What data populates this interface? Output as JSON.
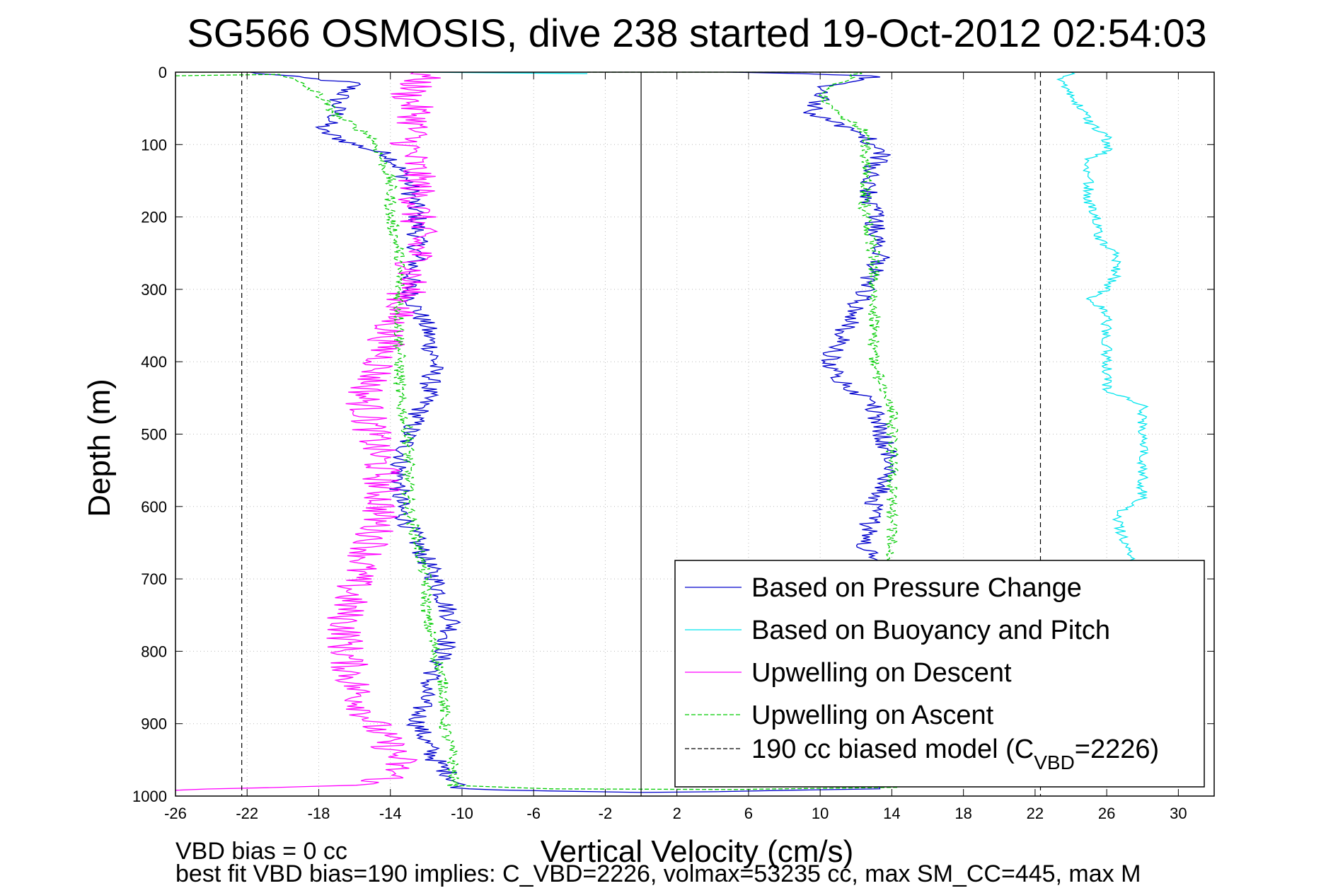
{
  "chart_data": {
    "type": "line",
    "title": "SG566 OSMOSIS, dive 238 started 19-Oct-2012 02:54:03",
    "xlabel": "Vertical Velocity (cm/s)",
    "ylabel": "Depth (m)",
    "xlim": [
      -26,
      32
    ],
    "ylim": [
      1000,
      0
    ],
    "y_reversed": true,
    "grid": true,
    "legend_position": "bottom-right",
    "xticks": [
      -26,
      -22,
      -18,
      -14,
      -10,
      -6,
      -2,
      2,
      6,
      10,
      14,
      18,
      22,
      26,
      30
    ],
    "yticks": [
      0,
      100,
      200,
      300,
      400,
      500,
      600,
      700,
      800,
      900,
      1000
    ],
    "zero_line_x": 0,
    "model_lines_x": [
      -22.3,
      22.3
    ],
    "notes": [
      "VBD bias = 0 cc",
      "best fit VBD bias=190 implies: C_VBD=2226, volmax=53235 cc, max SM_CC=445, max M"
    ],
    "legend": [
      {
        "label": "Based on Pressure Change",
        "series": "pressure",
        "color": "#0000cc",
        "style": "solid"
      },
      {
        "label": "Based on Buoyancy and Pitch",
        "series": "buoyancy",
        "color": "#00e5ee",
        "style": "solid"
      },
      {
        "label": "Upwelling on Descent",
        "series": "upDescent",
        "color": "#ff00ff",
        "style": "solid"
      },
      {
        "label": "Upwelling on Ascent",
        "series": "upAscent",
        "color": "#00cc00",
        "style": "dashed"
      },
      {
        "label": "190 cc biased model (C",
        "sub": "VBD",
        "tail": "=2226)",
        "series": "model",
        "color": "#000000",
        "style": "dashed"
      }
    ],
    "series": [
      {
        "id": "pressure_descent",
        "name": "Based on Pressure Change",
        "color": "#0000cc",
        "noise": 0.6,
        "points": [
          [
            -22,
            0
          ],
          [
            -16,
            15
          ],
          [
            -17,
            40
          ],
          [
            -17,
            60
          ],
          [
            -18,
            80
          ],
          [
            -16,
            100
          ],
          [
            -14,
            115
          ],
          [
            -13,
            150
          ],
          [
            -12.5,
            200
          ],
          [
            -12.5,
            250
          ],
          [
            -13,
            300
          ],
          [
            -12.5,
            330
          ],
          [
            -12,
            350
          ],
          [
            -11.5,
            400
          ],
          [
            -12,
            450
          ],
          [
            -13,
            500
          ],
          [
            -13.5,
            550
          ],
          [
            -13.5,
            600
          ],
          [
            -12.5,
            650
          ],
          [
            -11.5,
            700
          ],
          [
            -10.5,
            760
          ],
          [
            -11,
            800
          ],
          [
            -12,
            850
          ],
          [
            -12.5,
            900
          ],
          [
            -11.5,
            950
          ],
          [
            -10.5,
            975
          ],
          [
            -10,
            990
          ],
          [
            -5,
            993
          ],
          [
            0,
            995
          ]
        ]
      },
      {
        "id": "pressure_ascent",
        "name": "Based on Pressure Change",
        "color": "#0000cc",
        "noise": 0.6,
        "points": [
          [
            0,
            995
          ],
          [
            4,
            994
          ],
          [
            13.5,
            990
          ],
          [
            13.5,
            950
          ],
          [
            13.5,
            900
          ],
          [
            13,
            850
          ],
          [
            13,
            800
          ],
          [
            13,
            750
          ],
          [
            13,
            700
          ],
          [
            12.5,
            650
          ],
          [
            13,
            600
          ],
          [
            14,
            550
          ],
          [
            13.5,
            500
          ],
          [
            13,
            460
          ],
          [
            11,
            420
          ],
          [
            10.5,
            400
          ],
          [
            11.5,
            350
          ],
          [
            12.5,
            300
          ],
          [
            13.5,
            250
          ],
          [
            13,
            200
          ],
          [
            12.5,
            150
          ],
          [
            13.5,
            110
          ],
          [
            12.5,
            90
          ],
          [
            11,
            70
          ],
          [
            9.5,
            60
          ],
          [
            10,
            40
          ],
          [
            10,
            20
          ],
          [
            12.5,
            10
          ],
          [
            13,
            5
          ],
          [
            9,
            2
          ],
          [
            5,
            0
          ]
        ]
      },
      {
        "id": "buoyancy_descent",
        "name": "Based on Buoyancy and Pitch",
        "color": "#00e5ee",
        "noise": 0.8,
        "points": [
          [
            -12,
            0
          ],
          [
            -8,
            1
          ],
          [
            -3,
            2
          ]
        ]
      },
      {
        "id": "buoyancy_ascent",
        "name": "Based on Buoyancy and Pitch",
        "color": "#00e5ee",
        "noise": 0.3,
        "points": [
          [
            27.5,
            680
          ],
          [
            27,
            650
          ],
          [
            26.5,
            610
          ],
          [
            28,
            590
          ],
          [
            28,
            550
          ],
          [
            28,
            500
          ],
          [
            28,
            460
          ],
          [
            26,
            440
          ],
          [
            26,
            400
          ],
          [
            26,
            350
          ],
          [
            26,
            330
          ],
          [
            25,
            315
          ],
          [
            26,
            300
          ],
          [
            26.5,
            280
          ],
          [
            26.5,
            250
          ],
          [
            25.5,
            230
          ],
          [
            25.5,
            200
          ],
          [
            25,
            180
          ],
          [
            25,
            150
          ],
          [
            25,
            120
          ],
          [
            26,
            110
          ],
          [
            26,
            90
          ],
          [
            25,
            70
          ],
          [
            24.5,
            50
          ],
          [
            24,
            30
          ],
          [
            23.5,
            10
          ],
          [
            24,
            0
          ]
        ]
      },
      {
        "id": "up_descent",
        "name": "Upwelling on Descent",
        "color": "#ff00ff",
        "noise": 1.1,
        "points": [
          [
            -12,
            0
          ],
          [
            -13,
            30
          ],
          [
            -12.5,
            60
          ],
          [
            -13,
            100
          ],
          [
            -12.5,
            150
          ],
          [
            -12.5,
            200
          ],
          [
            -12.5,
            250
          ],
          [
            -13,
            300
          ],
          [
            -14,
            350
          ],
          [
            -14.5,
            400
          ],
          [
            -15.5,
            450
          ],
          [
            -15,
            500
          ],
          [
            -14.5,
            550
          ],
          [
            -14.5,
            600
          ],
          [
            -15,
            650
          ],
          [
            -16,
            700
          ],
          [
            -16.5,
            750
          ],
          [
            -16.5,
            800
          ],
          [
            -16,
            850
          ],
          [
            -15,
            900
          ],
          [
            -13.5,
            950
          ],
          [
            -14,
            975
          ],
          [
            -16,
            985
          ],
          [
            -26,
            992
          ]
        ]
      },
      {
        "id": "up_ascent",
        "name": "Upwelling on Ascent",
        "color": "#00cc00",
        "dashed": true,
        "noise": 0.35,
        "points": [
          [
            -26,
            5
          ],
          [
            -20,
            3
          ],
          [
            -18,
            30
          ],
          [
            -17,
            60
          ],
          [
            -15,
            90
          ],
          [
            -14,
            150
          ],
          [
            -14,
            200
          ],
          [
            -13.5,
            250
          ],
          [
            -13.5,
            300
          ],
          [
            -13.5,
            350
          ],
          [
            -13.5,
            400
          ],
          [
            -13.5,
            450
          ],
          [
            -13,
            500
          ],
          [
            -13,
            550
          ],
          [
            -13,
            600
          ],
          [
            -12.5,
            650
          ],
          [
            -12,
            700
          ],
          [
            -12,
            750
          ],
          [
            -11.5,
            800
          ],
          [
            -11,
            850
          ],
          [
            -11,
            900
          ],
          [
            -10.5,
            950
          ],
          [
            -10.5,
            985
          ],
          [
            -5,
            990
          ],
          [
            5,
            991
          ],
          [
            14,
            988
          ],
          [
            14,
            950
          ],
          [
            14,
            900
          ],
          [
            14,
            850
          ],
          [
            14,
            800
          ],
          [
            14,
            750
          ],
          [
            14,
            700
          ],
          [
            14,
            650
          ],
          [
            14,
            600
          ],
          [
            14,
            550
          ],
          [
            14,
            500
          ],
          [
            14,
            460
          ],
          [
            13.5,
            440
          ],
          [
            13,
            400
          ],
          [
            13,
            350
          ],
          [
            13,
            300
          ],
          [
            13,
            250
          ],
          [
            12.5,
            200
          ],
          [
            12.5,
            150
          ],
          [
            12.5,
            100
          ],
          [
            12.5,
            80
          ],
          [
            11,
            60
          ],
          [
            10,
            30
          ],
          [
            11,
            15
          ],
          [
            12,
            5
          ],
          [
            12,
            0
          ],
          [
            6,
            0
          ],
          [
            -3,
            0
          ]
        ]
      }
    ]
  }
}
